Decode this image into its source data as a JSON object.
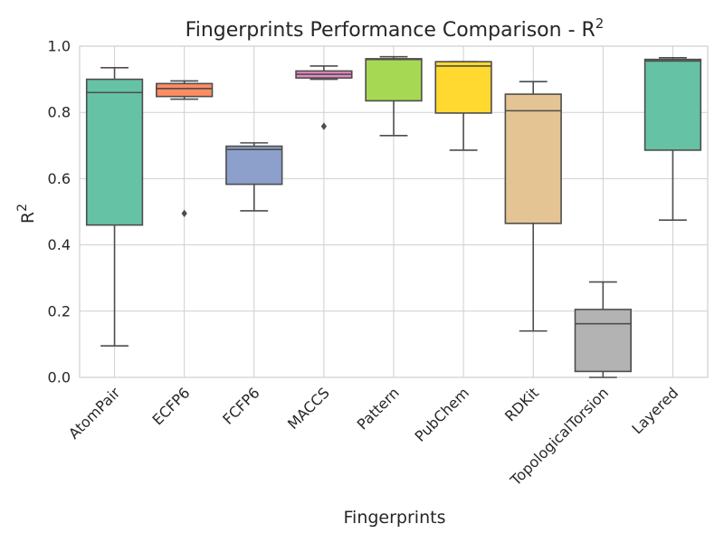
{
  "chart_data": {
    "type": "box",
    "title": "Fingerprints Performance Comparison - R",
    "title_superscript": "2",
    "xlabel": "Fingerprints",
    "ylabel": "R",
    "ylabel_superscript": "2",
    "ylim": [
      0.0,
      1.0
    ],
    "yticks": [
      "0.0",
      "0.2",
      "0.4",
      "0.6",
      "0.8",
      "1.0"
    ],
    "grid": true,
    "categories": [
      "AtomPair",
      "ECFP6",
      "FCFP6",
      "MACCS",
      "Pattern",
      "PubChem",
      "RDKit",
      "TopologicalTorsion",
      "Layered"
    ],
    "boxes": [
      {
        "name": "AtomPair",
        "color": "#66c2a5",
        "whisker_low": 0.095,
        "q1": 0.46,
        "median": 0.86,
        "q3": 0.9,
        "whisker_high": 0.935,
        "outliers": []
      },
      {
        "name": "ECFP6",
        "color": "#fc8d62",
        "whisker_low": 0.84,
        "q1": 0.848,
        "median": 0.872,
        "q3": 0.887,
        "whisker_high": 0.895,
        "outliers": [
          0.495
        ]
      },
      {
        "name": "FCFP6",
        "color": "#8da0cb",
        "whisker_low": 0.503,
        "q1": 0.583,
        "median": 0.688,
        "q3": 0.698,
        "whisker_high": 0.708,
        "outliers": []
      },
      {
        "name": "MACCS",
        "color": "#e78ac3",
        "whisker_low": 0.9,
        "q1": 0.904,
        "median": 0.915,
        "q3": 0.925,
        "whisker_high": 0.94,
        "outliers": [
          0.758
        ]
      },
      {
        "name": "Pattern",
        "color": "#a6d854",
        "whisker_low": 0.73,
        "q1": 0.835,
        "median": 0.96,
        "q3": 0.962,
        "whisker_high": 0.968,
        "outliers": []
      },
      {
        "name": "PubChem",
        "color": "#ffd92f",
        "whisker_low": 0.686,
        "q1": 0.798,
        "median": 0.94,
        "q3": 0.953,
        "whisker_high": 0.953,
        "outliers": []
      },
      {
        "name": "RDKit",
        "color": "#e5c494",
        "whisker_low": 0.14,
        "q1": 0.465,
        "median": 0.805,
        "q3": 0.855,
        "whisker_high": 0.893,
        "outliers": []
      },
      {
        "name": "TopologicalTorsion",
        "color": "#b3b3b3",
        "whisker_low": 0.0,
        "q1": 0.018,
        "median": 0.162,
        "q3": 0.205,
        "whisker_high": 0.288,
        "outliers": []
      },
      {
        "name": "Layered",
        "color": "#66c2a5",
        "whisker_low": 0.475,
        "q1": 0.686,
        "median": 0.955,
        "q3": 0.96,
        "whisker_high": 0.965,
        "outliers": []
      }
    ]
  }
}
